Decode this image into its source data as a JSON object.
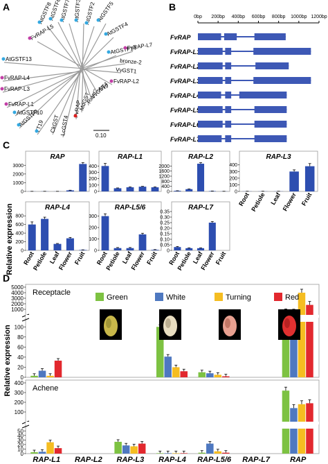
{
  "panels": {
    "a": "A",
    "b": "B",
    "c": "C",
    "d": "D"
  },
  "colors": {
    "bar": "#2d4eb0",
    "green": "#7dc242",
    "white": "#4e78c0",
    "turning": "#f5bd21",
    "red": "#e2282e",
    "gene": "#3d58b5",
    "tree": "#9a9a9a"
  },
  "tree": {
    "scale_label": "0.10",
    "labels": [
      {
        "text": "AtGSTF8",
        "dot": "blue"
      },
      {
        "text": "AtGSTF6",
        "dot": "blue"
      },
      {
        "text": "AtGSTF7",
        "dot": "blue"
      },
      {
        "text": "AtGSTF3",
        "dot": "blue"
      },
      {
        "text": "AtGSTF2",
        "dot": "blue"
      },
      {
        "text": "AtGSTF5",
        "dot": "blue"
      },
      {
        "text": "AtGSTF4",
        "dot": "blue"
      },
      {
        "text": "AtGSTF14",
        "dot": "blue"
      },
      {
        "text": "FvRAP-L5",
        "dot": "magenta"
      },
      {
        "text": "FvRAP-L7",
        "dot": "magenta"
      },
      {
        "text": "bronze-2",
        "dot": "none"
      },
      {
        "text": "VvGST1",
        "dot": "none"
      },
      {
        "text": "AtGSTF13",
        "dot": "blue"
      },
      {
        "text": "FvRAP-L4",
        "dot": "magenta"
      },
      {
        "text": "FvRAP-L3",
        "dot": "magenta"
      },
      {
        "text": "FvRAP-L2",
        "dot": "magenta"
      },
      {
        "text": "FvRAP-L1",
        "dot": "magenta"
      },
      {
        "text": "AtGSTF10",
        "dot": "blue"
      },
      {
        "text": "AtGSTF9",
        "dot": "blue"
      },
      {
        "text": "TT19",
        "dot": "blue"
      },
      {
        "text": "CkGST",
        "dot": "none"
      },
      {
        "text": "LcGST4",
        "dot": "none"
      },
      {
        "text": "FvRAP",
        "dot": "red"
      },
      {
        "text": "MdGST",
        "dot": "none"
      },
      {
        "text": "Riant2",
        "dot": "none"
      },
      {
        "text": "VvGST4",
        "dot": "none"
      },
      {
        "text": "AN9",
        "dot": "none"
      }
    ]
  },
  "genes": {
    "scale_ticks": [
      "0bp",
      "200bp",
      "400bp",
      "600bp",
      "800bp",
      "1000bp",
      "1200bp"
    ],
    "items": [
      {
        "name": "FvRAP",
        "exons": [
          [
            0,
            230
          ],
          [
            260,
            385
          ],
          [
            560,
            870
          ]
        ]
      },
      {
        "name": "FvRAP-L1",
        "exons": [
          [
            0,
            245
          ],
          [
            270,
            330
          ],
          [
            550,
            1120
          ]
        ]
      },
      {
        "name": "FvRAP-L2",
        "exons": [
          [
            0,
            245
          ],
          [
            270,
            330
          ],
          [
            570,
            900
          ]
        ]
      },
      {
        "name": "FvRAP-L3",
        "exons": [
          [
            0,
            245
          ],
          [
            270,
            330
          ],
          [
            550,
            1120
          ]
        ]
      },
      {
        "name": "FvRAP-L4",
        "exons": [
          [
            0,
            230
          ],
          [
            270,
            330
          ],
          [
            410,
            880
          ]
        ]
      },
      {
        "name": "FvRAP-L5",
        "exons": [
          [
            0,
            245
          ],
          [
            270,
            330
          ],
          [
            560,
            880
          ]
        ]
      },
      {
        "name": "FvRAP-L6",
        "exons": [
          [
            0,
            245
          ],
          [
            270,
            330
          ],
          [
            560,
            880
          ]
        ]
      },
      {
        "name": "FvRAP-L7",
        "exons": [
          [
            0,
            235
          ],
          [
            270,
            330
          ],
          [
            560,
            880
          ]
        ]
      }
    ]
  },
  "panel_c": {
    "ylabel": "Relative expression",
    "tissues": [
      "Root",
      "Petiole",
      "Leaf",
      "Flower",
      "Fruit"
    ],
    "charts": [
      {
        "title": "RAP",
        "ticks": [
          "0",
          "1000",
          "2000",
          "3000"
        ],
        "ymax": 3500,
        "values": [
          10,
          15,
          10,
          120,
          3150
        ],
        "err": [
          3,
          3,
          3,
          20,
          150
        ]
      },
      {
        "title": "RAP-L1",
        "ticks": [
          "0",
          "100",
          "200",
          "300",
          "400"
        ],
        "ymax": 480,
        "values": [
          400,
          50,
          65,
          75,
          65
        ],
        "err": [
          40,
          5,
          5,
          5,
          5
        ]
      },
      {
        "title": "RAP-L2",
        "ticks": [
          "0",
          "400",
          "800",
          "1200",
          "1600",
          "2000"
        ],
        "ymax": 2400,
        "values": [
          50,
          180,
          2180,
          30,
          10
        ],
        "err": [
          5,
          20,
          80,
          5,
          3
        ]
      },
      {
        "title": "RAP-L3",
        "ticks": [
          "0",
          "100",
          "200",
          "300",
          "400"
        ],
        "ymax": 460,
        "values": [
          2,
          2,
          2,
          300,
          380
        ],
        "err": [
          1,
          1,
          1,
          25,
          40
        ]
      },
      {
        "title": "RAP-L4",
        "ticks": [
          "0",
          "200",
          "400",
          "600",
          "800"
        ],
        "ymax": 900,
        "values": [
          600,
          730,
          150,
          280,
          10
        ],
        "err": [
          60,
          40,
          10,
          20,
          3
        ]
      },
      {
        "title": "RAP-L5/6",
        "ticks": [
          "0",
          "100",
          "200",
          "300"
        ],
        "ymax": 340,
        "values": [
          300,
          20,
          20,
          140,
          5
        ],
        "err": [
          20,
          5,
          5,
          10,
          2
        ]
      },
      {
        "title": "RAP-L7",
        "ticks": [
          "0",
          "0.05",
          "0.10",
          "0.15",
          "0.20",
          "0.25",
          "0.30",
          "0.35"
        ],
        "ymax": 0.35,
        "values": [
          0.03,
          0.02,
          0.02,
          0.25,
          0.0
        ],
        "err": [
          0.005,
          0.003,
          0.003,
          0.01,
          0.0
        ]
      }
    ]
  },
  "panel_d": {
    "ylabel": "Relative expression",
    "legend": [
      "Green",
      "White",
      "Turning",
      "Red"
    ],
    "genes": [
      "RAP-L1",
      "RAP-L2",
      "RAP-L3",
      "RAP-L4",
      "RAP-L5/6",
      "RAP-L7",
      "RAP"
    ],
    "receptacle": {
      "title": "Receptacle",
      "top_ticks": [
        "0",
        "1000",
        "2000",
        "3000",
        "4000",
        "5000"
      ],
      "bottom_ticks": [
        "0",
        "20",
        "40",
        "60",
        "80",
        "100"
      ],
      "values": [
        [
          3,
          13,
          3,
          33
        ],
        [
          0,
          0,
          0,
          0
        ],
        [
          0,
          0,
          0,
          0
        ],
        [
          100,
          41,
          20,
          12
        ],
        [
          10,
          8,
          5,
          2
        ],
        [
          0,
          0,
          0,
          0
        ],
        [
          450,
          400,
          4000,
          1800
        ]
      ]
    },
    "achene": {
      "title": "Achene",
      "top_ticks": [
        "0",
        "100",
        "200",
        "300",
        "400"
      ],
      "bottom_ticks": [
        "0",
        "10",
        "20",
        "30",
        "40",
        "50"
      ],
      "values": [
        [
          3,
          4,
          25,
          12
        ],
        [
          0,
          0,
          0,
          0
        ],
        [
          26,
          18,
          16,
          22
        ],
        [
          1,
          1,
          1,
          1
        ],
        [
          2,
          22,
          5,
          2
        ],
        [
          0,
          0,
          0,
          0
        ],
        [
          320,
          140,
          180,
          190
        ]
      ]
    }
  }
}
